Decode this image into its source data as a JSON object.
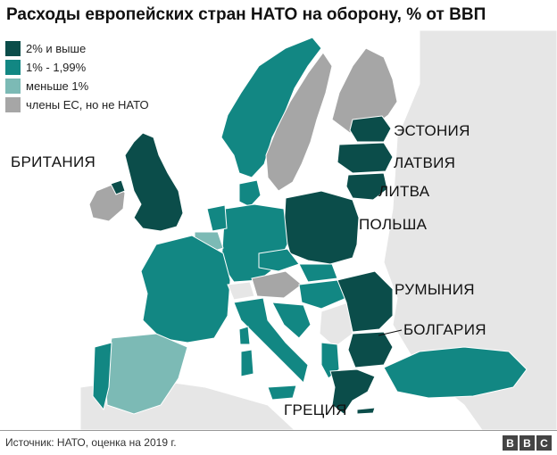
{
  "title": "Расходы европейских стран НАТО на оборону, % от ВВП",
  "legend": [
    {
      "label": "2% и выше",
      "color": "#0b4d4a"
    },
    {
      "label": "1% - 1,99%",
      "color": "#128783"
    },
    {
      "label": "меньше 1%",
      "color": "#7cbab5"
    },
    {
      "label": "члены ЕС, но не НАТО",
      "color": "#a6a6a6"
    }
  ],
  "colors": {
    "sea": "#ffffff",
    "land_outside": "#e6e6e6",
    "high": "#0b4d4a",
    "mid": "#128783",
    "low": "#7cbab5",
    "eu": "#a6a6a6"
  },
  "countries": {
    "estonia": "ЭСТОНИЯ",
    "latvia": "ЛАТВИЯ",
    "lithuania": "ЛИТВА",
    "poland": "ПОЛЬША",
    "romania": "РУМЫНИЯ",
    "bulgaria": "БОЛГАРИЯ",
    "greece": "ГРЕЦИЯ",
    "britain": "БРИТАНИЯ"
  },
  "source": "Источник: НАТО, оценка на 2019 г.",
  "logo": {
    "letters": [
      "B",
      "B",
      "C"
    ]
  }
}
